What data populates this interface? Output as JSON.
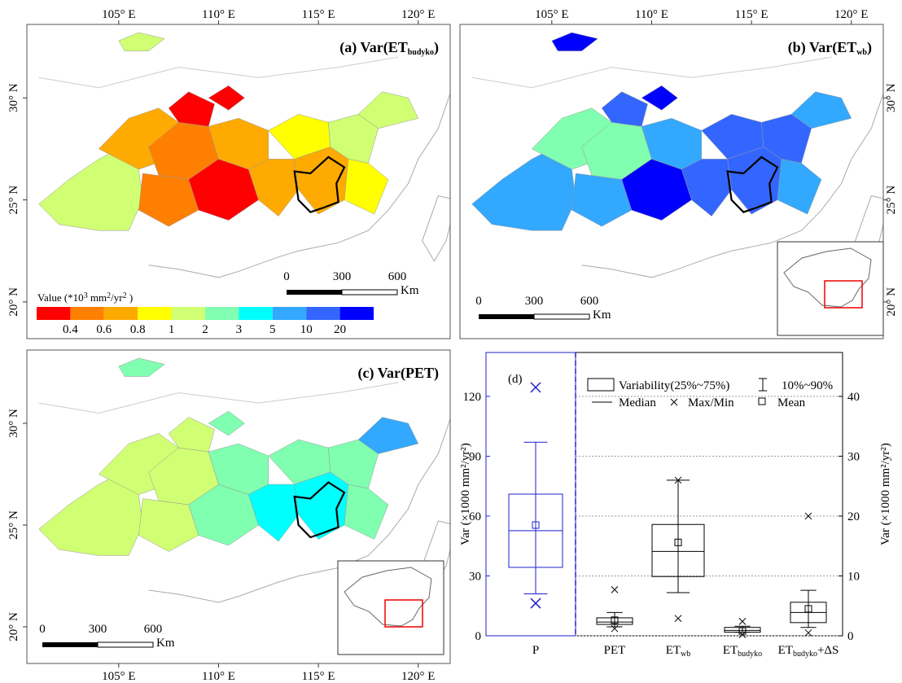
{
  "maps": {
    "panels": [
      {
        "title": [
          "(a)  Var(ET",
          "budyko",
          ")"
        ],
        "lonlim": [
          100.4,
          121.6
        ],
        "latlim": [
          18.2,
          33.6
        ],
        "lonticks": [
          {
            "value": 105,
            "label": "105° E"
          },
          {
            "value": 110,
            "label": "110° E"
          },
          {
            "value": 115,
            "label": "115° E"
          },
          {
            "value": 120,
            "label": "120° E"
          }
        ],
        "latticks": [
          {
            "value": 20,
            "label": "20° N"
          },
          {
            "value": 25,
            "label": "25° N"
          },
          {
            "value": 30,
            "label": "30° N"
          }
        ]
      },
      {
        "title": [
          "(b)  Var(ET",
          "wb",
          ")"
        ],
        "lonlim": [
          100.4,
          121.6
        ],
        "latlim": [
          18.2,
          33.6
        ],
        "lonticks": [
          {
            "value": 105,
            "label": "105° E"
          },
          {
            "value": 110,
            "label": "110° E"
          },
          {
            "value": 115,
            "label": "115° E"
          },
          {
            "value": 120,
            "label": "120° E"
          }
        ],
        "latticks": [
          {
            "value": 20,
            "label": "20° N"
          },
          {
            "value": 25,
            "label": "25° N"
          },
          {
            "value": 30,
            "label": "30° N"
          }
        ]
      },
      {
        "title": [
          "(c)  Var(PET)"
        ],
        "lonlim": [
          100.4,
          121.6
        ],
        "latlim": [
          18.2,
          33.6
        ],
        "lonticks": [
          {
            "value": 105,
            "label": "105° E"
          },
          {
            "value": 110,
            "label": "110° E"
          },
          {
            "value": 115,
            "label": "115° E"
          },
          {
            "value": 120,
            "label": "120° E"
          }
        ],
        "latticks": [
          {
            "value": 20,
            "label": "20° N"
          },
          {
            "value": 25,
            "label": "25° N"
          },
          {
            "value": 30,
            "label": "30° N"
          }
        ]
      }
    ],
    "legend": {
      "title": [
        "Value (*10",
        "3",
        " mm",
        "2",
        "/yr",
        "2",
        "  )"
      ],
      "labels": [
        0.4,
        0.6,
        0.8,
        1,
        2,
        3,
        5,
        10,
        20
      ],
      "colors": [
        "#ff0000",
        "#ff7f00",
        "#ffaa00",
        "#ffff00",
        "#d1ff73",
        "#80ffb0",
        "#00ffff",
        "#33a8ff",
        "#3366ff",
        "#0000ff"
      ]
    },
    "scale_bar": {
      "labels": [
        0,
        300,
        600
      ],
      "unit": "Km"
    }
  },
  "chart_data": {
    "type": "box",
    "title": "(d)",
    "categories": [
      [
        "P"
      ],
      [
        "PET"
      ],
      [
        "ET",
        "wb"
      ],
      [
        "ET",
        "budyko"
      ],
      [
        "ET",
        "budyko",
        "+ΔS"
      ]
    ],
    "ylabel": "Var (×1000 mm²/yr²)",
    "y2label": "Var (×1000 mm²/yr²)",
    "ylim": [
      0,
      142
    ],
    "yticks": [
      0,
      30,
      60,
      90,
      120
    ],
    "y2lim": [
      0,
      47.33
    ],
    "y2ticks": [
      0,
      10,
      20,
      30,
      40
    ],
    "grid": true,
    "legend": [
      "Variability(25%~75%)",
      "10%~90%",
      "Median",
      "Max/Min",
      "Mean"
    ],
    "boxes": [
      {
        "axis": "y",
        "color": "#1f1fd0",
        "p10": 21,
        "q1": 34.3,
        "median": 52.7,
        "q3": 71,
        "p90": 97,
        "min": 16.3,
        "max": 124.5,
        "mean": 55.5
      },
      {
        "axis": "y2",
        "color": "#000000",
        "p10": 1.5,
        "q1": 1.9,
        "median": 2.3,
        "q3": 3.0,
        "p90": 3.9,
        "min": 1.2,
        "max": 7.7,
        "mean": 2.6
      },
      {
        "axis": "y2",
        "color": "#000000",
        "p10": 7.2,
        "q1": 9.9,
        "median": 14.1,
        "q3": 18.6,
        "p90": 26,
        "min": 2.9,
        "max": 26,
        "mean": 15.6
      },
      {
        "axis": "y2",
        "color": "#000000",
        "p10": 0.6,
        "q1": 0.6,
        "median": 0.9,
        "q3": 1.4,
        "p90": 1.6,
        "min": 0.2,
        "max": 2.4,
        "mean": 0.8
      },
      {
        "axis": "y2",
        "color": "#000000",
        "p10": 1.4,
        "q1": 2.2,
        "median": 3.9,
        "q3": 5.6,
        "p90": 7.6,
        "min": 0.5,
        "max": 20,
        "mean": 4.5
      }
    ]
  }
}
